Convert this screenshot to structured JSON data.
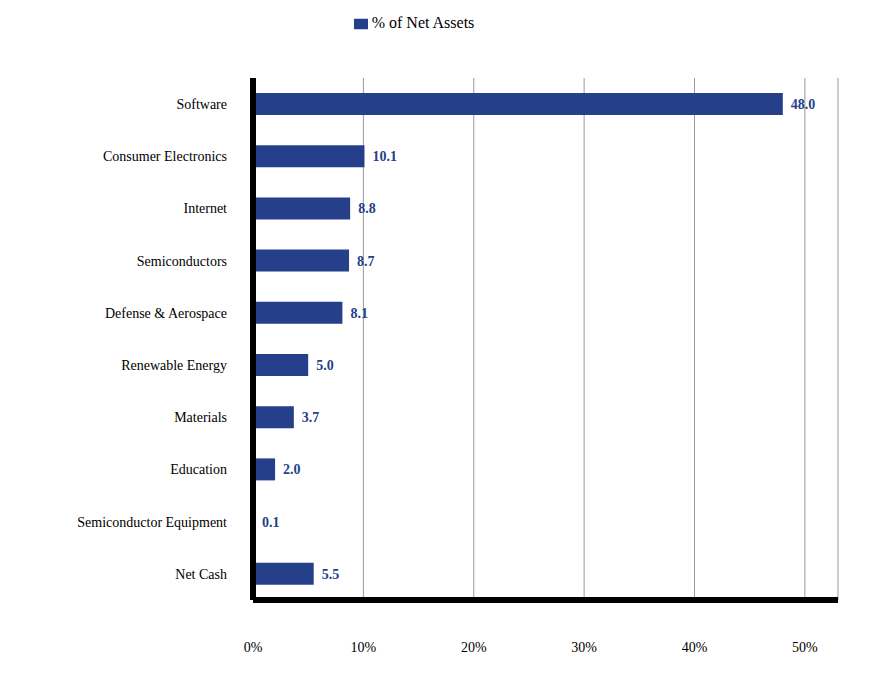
{
  "chart_data": {
    "type": "bar",
    "orientation": "horizontal",
    "categories": [
      "Software",
      "Consumer Electronics",
      "Internet",
      "Semiconductors",
      "Defense & Aerospace",
      "Renewable Energy",
      "Materials",
      "Education",
      "Semiconductor Equipment",
      "Net Cash"
    ],
    "series": [
      {
        "name": "% of Net Assets",
        "color": "#253f8a",
        "values": [
          48.0,
          10.1,
          8.8,
          8.7,
          8.1,
          5.0,
          3.7,
          2.0,
          0.1,
          5.5
        ],
        "value_labels": [
          "48.0",
          "10.1",
          "8.8",
          "8.7",
          "8.1",
          "5.0",
          "3.7",
          "2.0",
          "0.1",
          "5.5"
        ]
      }
    ],
    "xlim": [
      0,
      53
    ],
    "xticks": [
      {
        "value": 0,
        "label": "0%"
      },
      {
        "value": 10,
        "label": "10%"
      },
      {
        "value": 20,
        "label": "20%"
      },
      {
        "value": 30,
        "label": "30%"
      },
      {
        "value": 40,
        "label": "40%"
      },
      {
        "value": 50,
        "label": "50%"
      }
    ],
    "grid": true,
    "legend": "top",
    "data_labels": true
  }
}
